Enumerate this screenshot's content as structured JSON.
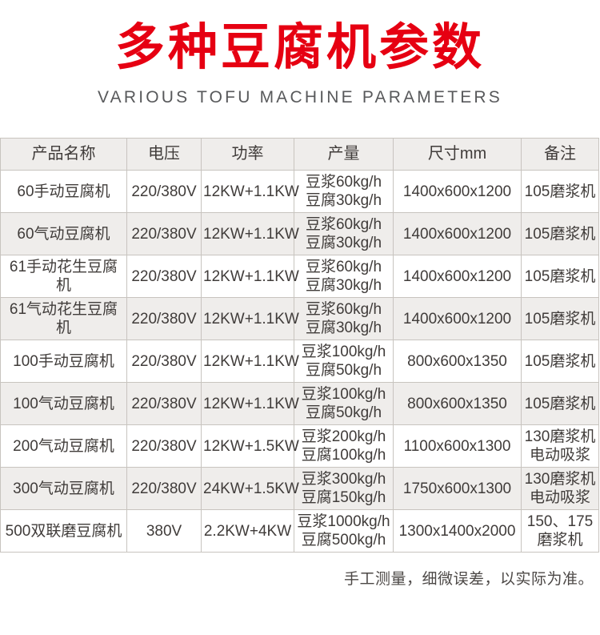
{
  "page": {
    "title": "多种豆腐机参数",
    "subtitle": "VARIOUS TOFU MACHINE PARAMETERS",
    "footnote": "手工测量，细微误差，以实际为准。"
  },
  "colors": {
    "title_red": "#e60012",
    "subtitle_gray": "#58595b",
    "row_alt_bg": "#efedeb",
    "border_color": "#c8c4bf",
    "text_color": "#403c3a"
  },
  "table": {
    "headers": [
      "产品名称",
      "电压",
      "功率",
      "产量",
      "尺寸mm",
      "备注"
    ],
    "rows": [
      {
        "name": "60手动豆腐机",
        "voltage": "220/380V",
        "power": "12KW+1.1KW",
        "output": [
          "豆浆60kg/h",
          "豆腐30kg/h"
        ],
        "size": "1400x600x1200",
        "remark": [
          "105磨浆机"
        ]
      },
      {
        "name": "60气动豆腐机",
        "voltage": "220/380V",
        "power": "12KW+1.1KW",
        "output": [
          "豆浆60kg/h",
          "豆腐30kg/h"
        ],
        "size": "1400x600x1200",
        "remark": [
          "105磨浆机"
        ]
      },
      {
        "name": "61手动花生豆腐机",
        "voltage": "220/380V",
        "power": "12KW+1.1KW",
        "output": [
          "豆浆60kg/h",
          "豆腐30kg/h"
        ],
        "size": "1400x600x1200",
        "remark": [
          "105磨浆机"
        ]
      },
      {
        "name": "61气动花生豆腐机",
        "voltage": "220/380V",
        "power": "12KW+1.1KW",
        "output": [
          "豆浆60kg/h",
          "豆腐30kg/h"
        ],
        "size": "1400x600x1200",
        "remark": [
          "105磨浆机"
        ]
      },
      {
        "name": "100手动豆腐机",
        "voltage": "220/380V",
        "power": "12KW+1.1KW",
        "output": [
          "豆浆100kg/h",
          "豆腐50kg/h"
        ],
        "size": "800x600x1350",
        "remark": [
          "105磨浆机"
        ]
      },
      {
        "name": "100气动豆腐机",
        "voltage": "220/380V",
        "power": "12KW+1.1KW",
        "output": [
          "豆浆100kg/h",
          "豆腐50kg/h"
        ],
        "size": "800x600x1350",
        "remark": [
          "105磨浆机"
        ]
      },
      {
        "name": "200气动豆腐机",
        "voltage": "220/380V",
        "power": "12KW+1.5KW",
        "output": [
          "豆浆200kg/h",
          "豆腐100kg/h"
        ],
        "size": "1100x600x1300",
        "remark": [
          "130磨浆机",
          "电动吸浆"
        ]
      },
      {
        "name": "300气动豆腐机",
        "voltage": "220/380V",
        "power": "24KW+1.5KW",
        "output": [
          "豆浆300kg/h",
          "豆腐150kg/h"
        ],
        "size": "1750x600x1300",
        "remark": [
          "130磨浆机",
          "电动吸浆"
        ]
      },
      {
        "name": "500双联磨豆腐机",
        "voltage": "380V",
        "power": "2.2KW+4KW",
        "output": [
          "豆浆1000kg/h",
          "豆腐500kg/h"
        ],
        "size": "1300x1400x2000",
        "remark": [
          "150、175",
          "磨浆机"
        ]
      }
    ]
  }
}
